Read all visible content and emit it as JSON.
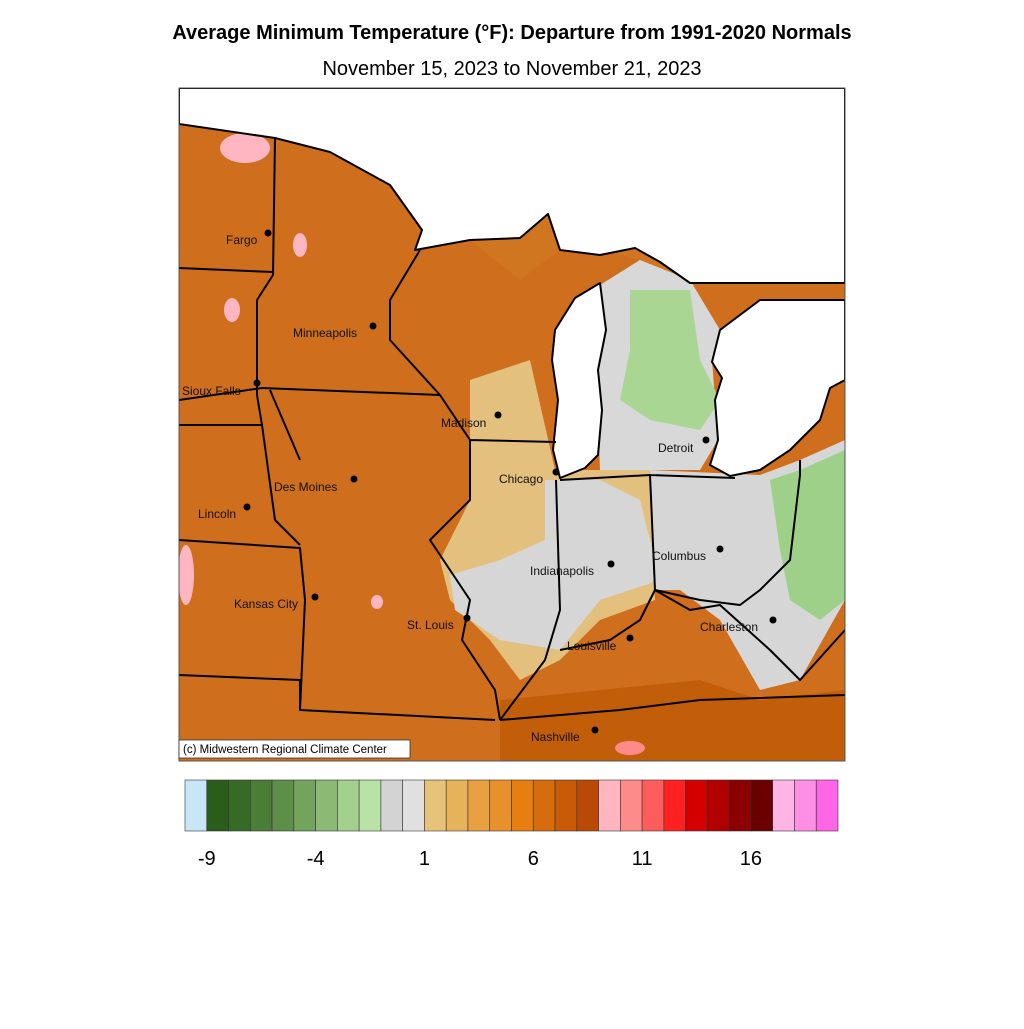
{
  "title": "Average Minimum Temperature (°F): Departure from 1991-2020 Normals",
  "subtitle": "November 15, 2023 to November 21, 2023",
  "credit": "(c) Midwestern Regional Climate Center",
  "cities": [
    "Fargo",
    "Minneapolis",
    "Sioux Falls",
    "Madison",
    "Des Moines",
    "Chicago",
    "Lincoln",
    "Detroit",
    "Columbus",
    "Indianapolis",
    "Kansas City",
    "St. Louis",
    "Charleston",
    "Louisville",
    "Nashville"
  ],
  "colorbar": {
    "range": [
      -10,
      20
    ],
    "ticks": [
      -9,
      -4,
      1,
      6,
      11,
      16
    ],
    "colors": [
      "#c8e6f5",
      "#2a5c1a",
      "#376b25",
      "#4a7d35",
      "#5e8f48",
      "#74a35c",
      "#8cba74",
      "#a3d08c",
      "#b8e3a5",
      "#d3d3d3",
      "#e0e0e0",
      "#e6c27a",
      "#e6b35a",
      "#e8a040",
      "#e8902c",
      "#e67e10",
      "#d66c0c",
      "#c85a08",
      "#b84a06",
      "#ffb6c1",
      "#ff8a8a",
      "#ff5c5c",
      "#ff2020",
      "#d40000",
      "#b00000",
      "#8c0000",
      "#6a0000",
      "#ffb4e6",
      "#ff8ee6",
      "#ff66e6"
    ]
  }
}
